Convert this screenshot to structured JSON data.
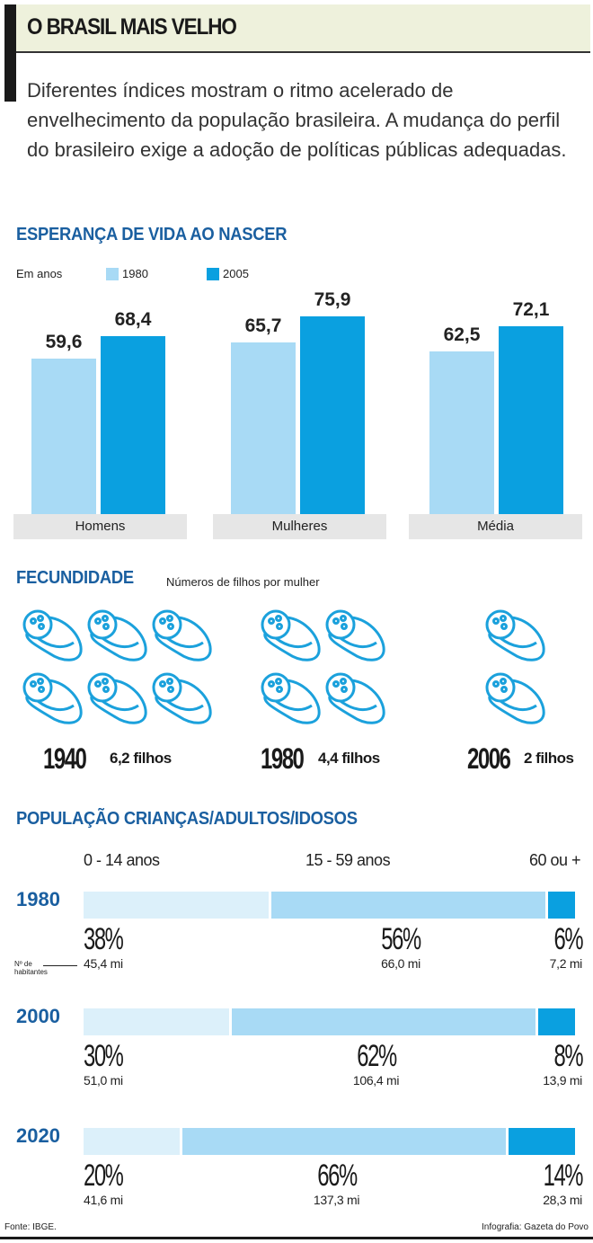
{
  "title": "O BRASIL MAIS VELHO",
  "intro": "Diferentes índices mostram o ritmo acelerado de envelhecimento da população brasileira. A mudança do perfil do brasileiro exige a adoção de políticas públicas adequadas.",
  "colors": {
    "light": "#a8daf5",
    "dark": "#0aa0e0",
    "lightest": "#dcf0fa",
    "heading": "#1a5fa0"
  },
  "chart_data": [
    {
      "type": "bar",
      "title": "ESPERANÇA DE VIDA AO NASCER",
      "unit_label": "Em anos",
      "categories": [
        "Homens",
        "Mulheres",
        "Média"
      ],
      "series": [
        {
          "name": "1980",
          "values": [
            59.6,
            65.7,
            62.5
          ],
          "labels": [
            "59,6",
            "65,7",
            "62,5"
          ]
        },
        {
          "name": "2005",
          "values": [
            68.4,
            75.9,
            72.1
          ],
          "labels": [
            "68,4",
            "75,9",
            "72,1"
          ]
        }
      ]
    },
    {
      "type": "pictogram",
      "title": "FECUNDIDADE",
      "subtitle": "Números de filhos por mulher",
      "items": [
        {
          "year": "1940",
          "value": 6.2,
          "label": "6,2 filhos",
          "icons": 6
        },
        {
          "year": "1980",
          "value": 4.4,
          "label": "4,4 filhos",
          "icons": 4
        },
        {
          "year": "2006",
          "value": 2,
          "label": "2 filhos",
          "icons": 2
        }
      ]
    },
    {
      "type": "stacked_bar",
      "title": "POPULAÇÃO CRIANÇAS/ADULTOS/IDOSOS",
      "groups": [
        "0 - 14 anos",
        "15 - 59 anos",
        "60 ou +"
      ],
      "annotation": "Nº de habitantes",
      "rows": [
        {
          "year": "1980",
          "percents": [
            38,
            56,
            6
          ],
          "pct_labels": [
            "38%",
            "56%",
            "6%"
          ],
          "pop": [
            "45,4 mi",
            "66,0 mi",
            "7,2 mi"
          ]
        },
        {
          "year": "2000",
          "percents": [
            30,
            62,
            8
          ],
          "pct_labels": [
            "30%",
            "62%",
            "8%"
          ],
          "pop": [
            "51,0 mi",
            "106,4 mi",
            "13,9 mi"
          ]
        },
        {
          "year": "2020",
          "percents": [
            20,
            66,
            14
          ],
          "pct_labels": [
            "20%",
            "66%",
            "14%"
          ],
          "pop": [
            "41,6 mi",
            "137,3 mi",
            "28,3 mi"
          ]
        }
      ]
    }
  ],
  "footer": {
    "source": "Fonte: IBGE.",
    "credit": "Infografia: Gazeta do Povo"
  }
}
